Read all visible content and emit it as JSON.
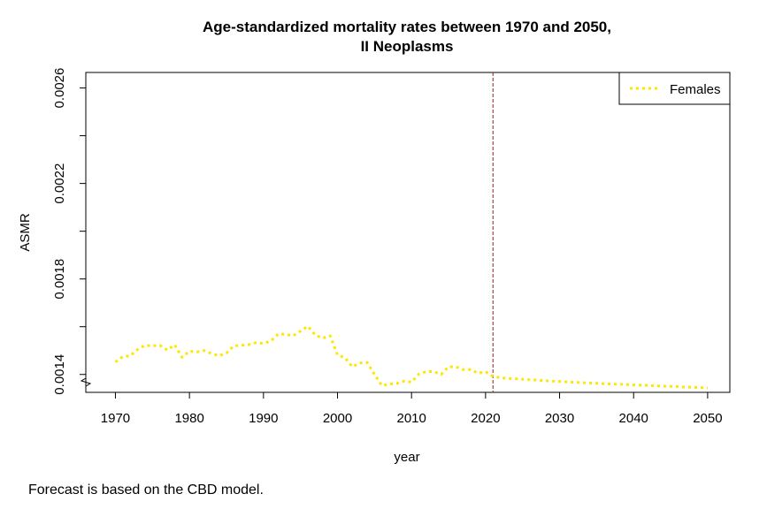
{
  "chart_data": {
    "type": "line",
    "title_line1": "Age-standardized mortality rates between 1970 and 2050,",
    "title_line2": "II Neoplasms",
    "xlabel": "year",
    "ylabel": "ASMR",
    "xlim": [
      1966,
      2053
    ],
    "ylim": [
      1.325,
      2.665
    ],
    "y_scale_factor": 0.001,
    "x_ticks": [
      "1970",
      "1980",
      "1990",
      "2000",
      "2010",
      "2020",
      "2030",
      "2040",
      "2050"
    ],
    "x_tick_values": [
      1970,
      1980,
      1990,
      2000,
      2010,
      2020,
      2030,
      2040,
      2050
    ],
    "y_tick_values": [
      1.4,
      1.8,
      2.2,
      2.6
    ],
    "y_ticks": [
      "0.0014",
      "0.0018",
      "0.0022",
      "0.0026"
    ],
    "y_minor_tick_values": [
      1.6,
      2.0,
      2.4
    ],
    "axis_break": true,
    "forecast_start": 2021,
    "forecast_line_color": "#8b2323",
    "grid": false,
    "legend_position": "top-right",
    "series": [
      {
        "name": "Females",
        "color": "#ffe600",
        "dash": "dotted",
        "x": [
          1970,
          1971,
          1972,
          1973,
          1974,
          1975,
          1976,
          1977,
          1978,
          1979,
          1980,
          1981,
          1982,
          1983,
          1984,
          1985,
          1986,
          1987,
          1988,
          1989,
          1990,
          1991,
          1992,
          1993,
          1994,
          1995,
          1996,
          1997,
          1998,
          1999,
          2000,
          2001,
          2002,
          2003,
          2004,
          2005,
          2006,
          2007,
          2008,
          2009,
          2010,
          2011,
          2012,
          2013,
          2014,
          2015,
          2016,
          2017,
          2018,
          2019,
          2020,
          2021,
          2022,
          2023,
          2024,
          2025,
          2026,
          2027,
          2028,
          2029,
          2030,
          2031,
          2032,
          2033,
          2034,
          2035,
          2036,
          2037,
          2038,
          2039,
          2040,
          2041,
          2042,
          2043,
          2044,
          2045,
          2046,
          2047,
          2048,
          2049,
          2050
        ],
        "y": [
          1.452,
          1.475,
          1.478,
          1.505,
          1.522,
          1.52,
          1.522,
          1.502,
          1.524,
          1.472,
          1.498,
          1.494,
          1.5,
          1.487,
          1.478,
          1.49,
          1.52,
          1.522,
          1.525,
          1.533,
          1.53,
          1.54,
          1.57,
          1.568,
          1.562,
          1.582,
          1.602,
          1.565,
          1.552,
          1.562,
          1.482,
          1.47,
          1.432,
          1.448,
          1.45,
          1.4,
          1.353,
          1.36,
          1.362,
          1.372,
          1.368,
          1.402,
          1.412,
          1.412,
          1.4,
          1.432,
          1.432,
          1.42,
          1.42,
          1.405,
          1.412,
          1.392,
          1.386,
          1.383,
          1.382,
          1.38,
          1.378,
          1.376,
          1.374,
          1.372,
          1.371,
          1.369,
          1.367,
          1.366,
          1.364,
          1.363,
          1.361,
          1.36,
          1.359,
          1.358,
          1.356,
          1.355,
          1.354,
          1.352,
          1.351,
          1.35,
          1.349,
          1.347,
          1.346,
          1.345,
          1.343
        ]
      }
    ]
  },
  "footnote": "Forecast is based on the CBD model."
}
